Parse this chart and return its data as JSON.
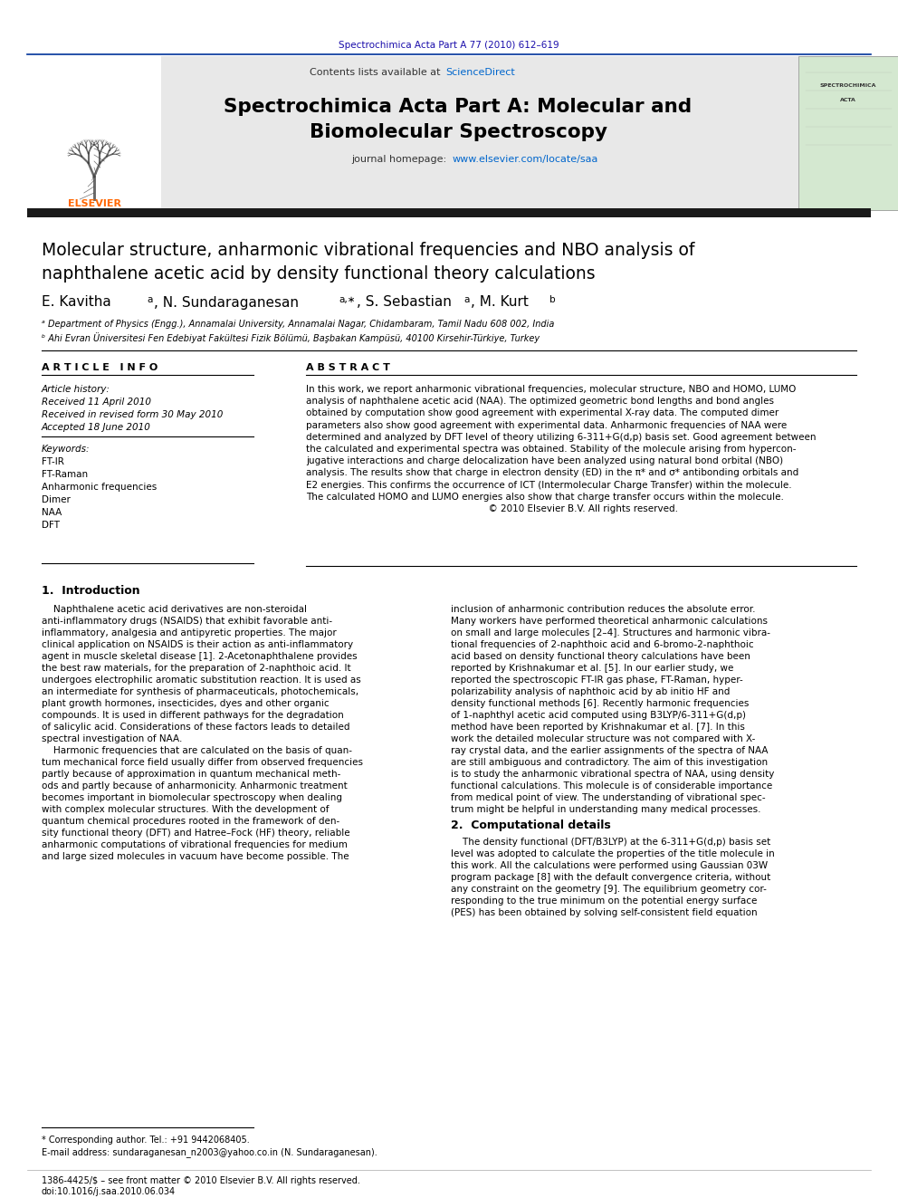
{
  "page_bg": "#ffffff",
  "header_journal_ref": "Spectrochimica Acta Part A 77 (2010) 612–619",
  "header_journal_ref_color": "#1a0dab",
  "journal_banner_bg": "#e8e8e8",
  "journal_name_line1": "Spectrochimica Acta Part A: Molecular and",
  "journal_name_line2": "Biomolecular Spectroscopy",
  "homepage_url_color": "#0066cc",
  "elsevier_logo_color": "#FF6600",
  "article_title_line1": "Molecular structure, anharmonic vibrational frequencies and NBO analysis of",
  "article_title_line2": "naphthalene acetic acid by density functional theory calculations",
  "affil_a": "ᵃ Department of Physics (Engg.), Annamalai University, Annamalai Nagar, Chidambaram, Tamil Nadu 608 002, India",
  "affil_b": "ᵇ Ahi Evran Üniversitesi Fen Edebiyat Fakültesi Fizik Bölümü, Başbakan Kampüsü, 40100 Kirsehir-Türkiye, Turkey",
  "article_info_title": "A R T I C L E   I N F O",
  "article_history_title": "Article history:",
  "received": "Received 11 April 2010",
  "received_revised": "Received in revised form 30 May 2010",
  "accepted": "Accepted 18 June 2010",
  "keywords_title": "Keywords:",
  "keywords": [
    "FT-IR",
    "FT-Raman",
    "Anharmonic frequencies",
    "Dimer",
    "NAA",
    "DFT"
  ],
  "abstract_title": "A B S T R A C T",
  "abstract_lines": [
    "In this work, we report anharmonic vibrational frequencies, molecular structure, NBO and HOMO, LUMO",
    "analysis of naphthalene acetic acid (NAA). The optimized geometric bond lengths and bond angles",
    "obtained by computation show good agreement with experimental X-ray data. The computed dimer",
    "parameters also show good agreement with experimental data. Anharmonic frequencies of NAA were",
    "determined and analyzed by DFT level of theory utilizing 6-311+G(d,p) basis set. Good agreement between",
    "the calculated and experimental spectra was obtained. Stability of the molecule arising from hypercon-",
    "jugative interactions and charge delocalization have been analyzed using natural bond orbital (NBO)",
    "analysis. The results show that charge in electron density (ED) in the π* and σ* antibonding orbitals and",
    "E2 energies. This confirms the occurrence of ICT (Intermolecular Charge Transfer) within the molecule.",
    "The calculated HOMO and LUMO energies also show that charge transfer occurs within the molecule.",
    "                                                              © 2010 Elsevier B.V. All rights reserved."
  ],
  "section1_title": "1.  Introduction",
  "intro_col1_lines": [
    "    Naphthalene acetic acid derivatives are non-steroidal",
    "anti-inflammatory drugs (NSAIDS) that exhibit favorable anti-",
    "inflammatory, analgesia and antipyretic properties. The major",
    "clinical application on NSAIDS is their action as anti-inflammatory",
    "agent in muscle skeletal disease [1]. 2-Acetonaphthalene provides",
    "the best raw materials, for the preparation of 2-naphthoic acid. It",
    "undergoes electrophilic aromatic substitution reaction. It is used as",
    "an intermediate for synthesis of pharmaceuticals, photochemicals,",
    "plant growth hormones, insecticides, dyes and other organic",
    "compounds. It is used in different pathways for the degradation",
    "of salicylic acid. Considerations of these factors leads to detailed",
    "spectral investigation of NAA.",
    "    Harmonic frequencies that are calculated on the basis of quan-",
    "tum mechanical force field usually differ from observed frequencies",
    "partly because of approximation in quantum mechanical meth-",
    "ods and partly because of anharmonicity. Anharmonic treatment",
    "becomes important in biomolecular spectroscopy when dealing",
    "with complex molecular structures. With the development of",
    "quantum chemical procedures rooted in the framework of den-",
    "sity functional theory (DFT) and Hatree–Fock (HF) theory, reliable",
    "anharmonic computations of vibrational frequencies for medium",
    "and large sized molecules in vacuum have become possible. The"
  ],
  "intro_col2_lines": [
    "inclusion of anharmonic contribution reduces the absolute error.",
    "Many workers have performed theoretical anharmonic calculations",
    "on small and large molecules [2–4]. Structures and harmonic vibra-",
    "tional frequencies of 2-naphthoic acid and 6-bromo-2-naphthoic",
    "acid based on density functional theory calculations have been",
    "reported by Krishnakumar et al. [5]. In our earlier study, we",
    "reported the spectroscopic FT-IR gas phase, FT-Raman, hyper-",
    "polarizability analysis of naphthoic acid by ab initio HF and",
    "density functional methods [6]. Recently harmonic frequencies",
    "of 1-naphthyl acetic acid computed using B3LYP/6-311+G(d,p)",
    "method have been reported by Krishnakumar et al. [7]. In this",
    "work the detailed molecular structure was not compared with X-",
    "ray crystal data, and the earlier assignments of the spectra of NAA",
    "are still ambiguous and contradictory. The aim of this investigation",
    "is to study the anharmonic vibrational spectra of NAA, using density",
    "functional calculations. This molecule is of considerable importance",
    "from medical point of view. The understanding of vibrational spec-",
    "trum might be helpful in understanding many medical processes."
  ],
  "section2_title": "2.  Computational details",
  "comp_lines": [
    "    The density functional (DFT/B3LYP) at the 6-311+G(d,p) basis set",
    "level was adopted to calculate the properties of the title molecule in",
    "this work. All the calculations were performed using Gaussian 03W",
    "program package [8] with the default convergence criteria, without",
    "any constraint on the geometry [9]. The equilibrium geometry cor-",
    "responding to the true minimum on the potential energy surface",
    "(PES) has been obtained by solving self-consistent field equation"
  ],
  "footnote_corresponding": "* Corresponding author. Tel.: +91 9442068405.",
  "footnote_email": "E-mail address: sundaraganesan_n2003@yahoo.co.in (N. Sundaraganesan).",
  "footer_issn": "1386-4425/$ – see front matter © 2010 Elsevier B.V. All rights reserved.",
  "footer_doi": "doi:10.1016/j.saa.2010.06.034",
  "dark_bar_color": "#1a1a1a",
  "banner_border_color": "#003399"
}
